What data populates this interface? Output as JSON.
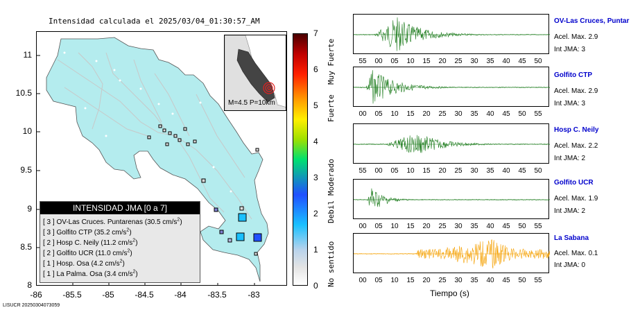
{
  "map": {
    "title": "Intensidad calculada el 2025/03/04_01:30:57_AM",
    "y_ticks": [
      "11",
      "10.5",
      "10",
      "9.5",
      "9",
      "8.5",
      "8"
    ],
    "x_ticks": [
      "-86",
      "-85.5",
      "-85",
      "-84.5",
      "-84",
      "-83.5",
      "-83"
    ],
    "inset_label": "M=4.5 P=10km",
    "legend": {
      "header": "INTENSIDAD JMA [0 a 7]",
      "rows": [
        {
          "pre": "[ 3 ] OV-Las Cruces. Puntarenas (30.5 cm/s",
          "sup": "2",
          "post": ")"
        },
        {
          "pre": "[ 3 ] Golfito CTP (35.2 cm/s",
          "sup": "2",
          "post": ")"
        },
        {
          "pre": "[ 2 ] Hosp C. Neily (11.2 cm/s",
          "sup": "2",
          "post": ")"
        },
        {
          "pre": "[ 2 ] Golfito UCR (11.0 cm/s",
          "sup": "2",
          "post": ")"
        },
        {
          "pre": "[ 1 ] Hosp. Osa (4.2 cm/s",
          "sup": "2",
          "post": ")"
        },
        {
          "pre": "[ 1 ] La Palma. Osa (3.4 cm/s",
          "sup": "2",
          "post": ")"
        }
      ]
    },
    "colors": {
      "land": "#b4ecee",
      "roads": "#c8c8c8",
      "int3": "#19c0ff",
      "int2": "#2050ff",
      "int1": "#b9b9e0"
    }
  },
  "scale": {
    "ticks": [
      "7",
      "6",
      "5",
      "4",
      "3",
      "2",
      "1",
      "0"
    ],
    "labels": {
      "muy_fuerte": "Muy Fuerte",
      "fuerte": "Fuerte",
      "moderado": "Moderado",
      "debil": "Debil",
      "no_sentido": "No sentido"
    }
  },
  "stations": [
    {
      "name": "OV-Las Cruces, Puntar",
      "accel": "Acel. Max. 2.9",
      "jma": "Int JMA: 3",
      "color": "#1a7a1a",
      "ticks": [
        "55",
        "00",
        "05",
        "10",
        "15",
        "20",
        "25",
        "30",
        "35",
        "40",
        "45",
        "50"
      ]
    },
    {
      "name": "Golfito CTP",
      "accel": "Acel. Max. 2.9",
      "jma": "Int JMA: 3",
      "color": "#1a7a1a",
      "ticks": [
        "00",
        "05",
        "10",
        "15",
        "20",
        "25",
        "30",
        "35",
        "40",
        "45",
        "50",
        "55"
      ]
    },
    {
      "name": "Hosp C. Neily",
      "accel": "Acel. Max. 2.2",
      "jma": "Int JMA: 2",
      "color": "#1a7a1a",
      "ticks": [
        "55",
        "00",
        "05",
        "10",
        "15",
        "20",
        "25",
        "30",
        "35",
        "40",
        "45",
        "50"
      ]
    },
    {
      "name": "Golfito UCR",
      "accel": "Acel. Max. 1.9",
      "jma": "Int JMA: 2",
      "color": "#1a7a1a",
      "ticks": [
        "00",
        "05",
        "10",
        "15",
        "20",
        "25",
        "30",
        "35",
        "40",
        "45",
        "50",
        "55"
      ]
    },
    {
      "name": "La Sabana",
      "accel": "Acel. Max. 0.1",
      "jma": "Int JMA: 0",
      "color": "#f5a000",
      "ticks": [
        "00",
        "05",
        "10",
        "15",
        "20",
        "25",
        "30",
        "35",
        "40",
        "45",
        "50",
        "55"
      ]
    }
  ],
  "time_axis_label": "Tiempo (s)",
  "footer": "LISUCR 20250304073059"
}
